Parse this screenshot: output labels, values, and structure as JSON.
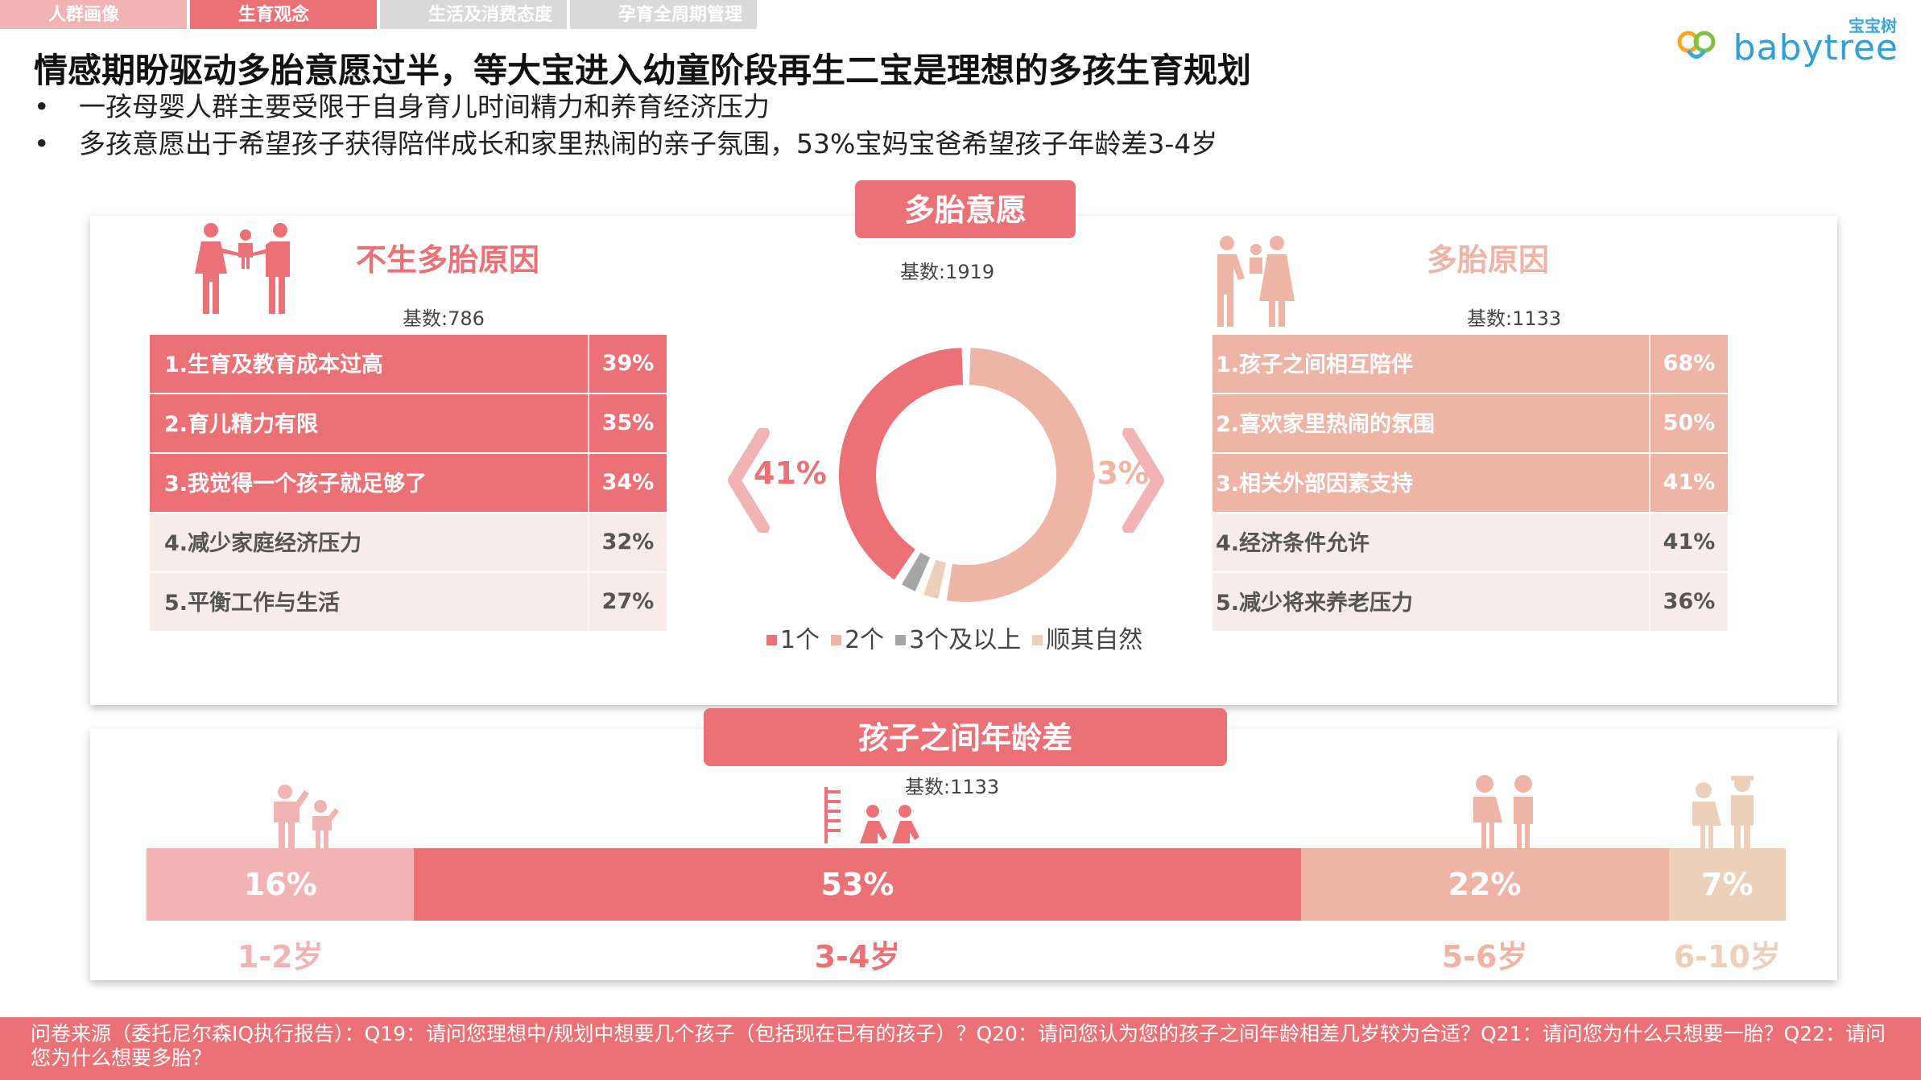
{
  "tabs": [
    {
      "label": "人群画像",
      "color": "#f2b3b4"
    },
    {
      "label": "生育观念",
      "color": "#ec7176"
    },
    {
      "label": "生活及消费态度",
      "color": "#d9d9d9"
    },
    {
      "label": "孕育全周期管理",
      "color": "#d9d9d9"
    }
  ],
  "logo": {
    "cn": "宝宝树",
    "text": "babytree"
  },
  "title": "情感期盼驱动多胎意愿过半，等大宝进入幼童阶段再生二宝是理想的多孩生育规划",
  "bullets": [
    "一孩母婴人群主要受限于自身育儿时间精力和养育经济压力",
    "多孩意愿出于希望孩子获得陪伴成长和家里热闹的亲子氛围，53%宝妈宝爸希望孩子年龄差3-4岁"
  ],
  "not_more": {
    "title": "不生多胎原因",
    "base": "基数:786",
    "rows": [
      {
        "label": "1.生育及教育成本过高",
        "value": "39%"
      },
      {
        "label": "2.育儿精力有限",
        "value": "35%"
      },
      {
        "label": "3.我觉得一个孩子就足够了",
        "value": "34%"
      },
      {
        "label": "4.减少家庭经济压力",
        "value": "32%"
      },
      {
        "label": "5.平衡工作与生活",
        "value": "27%"
      }
    ]
  },
  "more": {
    "title": "多胎原因",
    "base": "基数:1133",
    "rows": [
      {
        "label": "1.孩子之间相互陪伴",
        "value": "68%"
      },
      {
        "label": "2.喜欢家里热闹的氛围",
        "value": "50%"
      },
      {
        "label": "3.相关外部因素支持",
        "value": "41%"
      },
      {
        "label": "4.经济条件允许",
        "value": "41%"
      },
      {
        "label": "5.减少将来养老压力",
        "value": "36%"
      }
    ]
  },
  "willingness": {
    "title": "多胎意愿",
    "base": "基数:1919",
    "left_label": "41%",
    "right_label": "53%"
  },
  "age_gap": {
    "title": "孩子之间年龄差",
    "base": "基数:1133"
  },
  "colors": {
    "primary": "#ec7176",
    "pink_light": "#f2b3b4",
    "salmon": "#eeb4a6",
    "beige": "#ecd0ba",
    "gray": "#a6a6a6",
    "row_light": "#f8ecea"
  },
  "chart_data": [
    {
      "type": "pie",
      "title": "多胎意愿",
      "categories": [
        "1个",
        "2个",
        "3个及以上",
        "顺其自然"
      ],
      "values": [
        41,
        53,
        3,
        3
      ],
      "legend_position": "bottom"
    },
    {
      "type": "bar",
      "title": "孩子之间年龄差",
      "categories": [
        "1-2岁",
        "3-4岁",
        "5-6岁",
        "6-10岁"
      ],
      "values": [
        16,
        53,
        22,
        7
      ],
      "value_labels": [
        "16%",
        "53%",
        "22%",
        "7%"
      ]
    }
  ],
  "footer": "问卷来源（委托尼尔森IQ执行报告）：Q19：请问您理想中/规划中想要几个孩子（包括现在已有的孩子）？Q20：请问您认为您的孩子之间年龄相差几岁较为合适？Q21：请问您为什么只想要一胎？Q22：请问您为什么想要多胎？"
}
